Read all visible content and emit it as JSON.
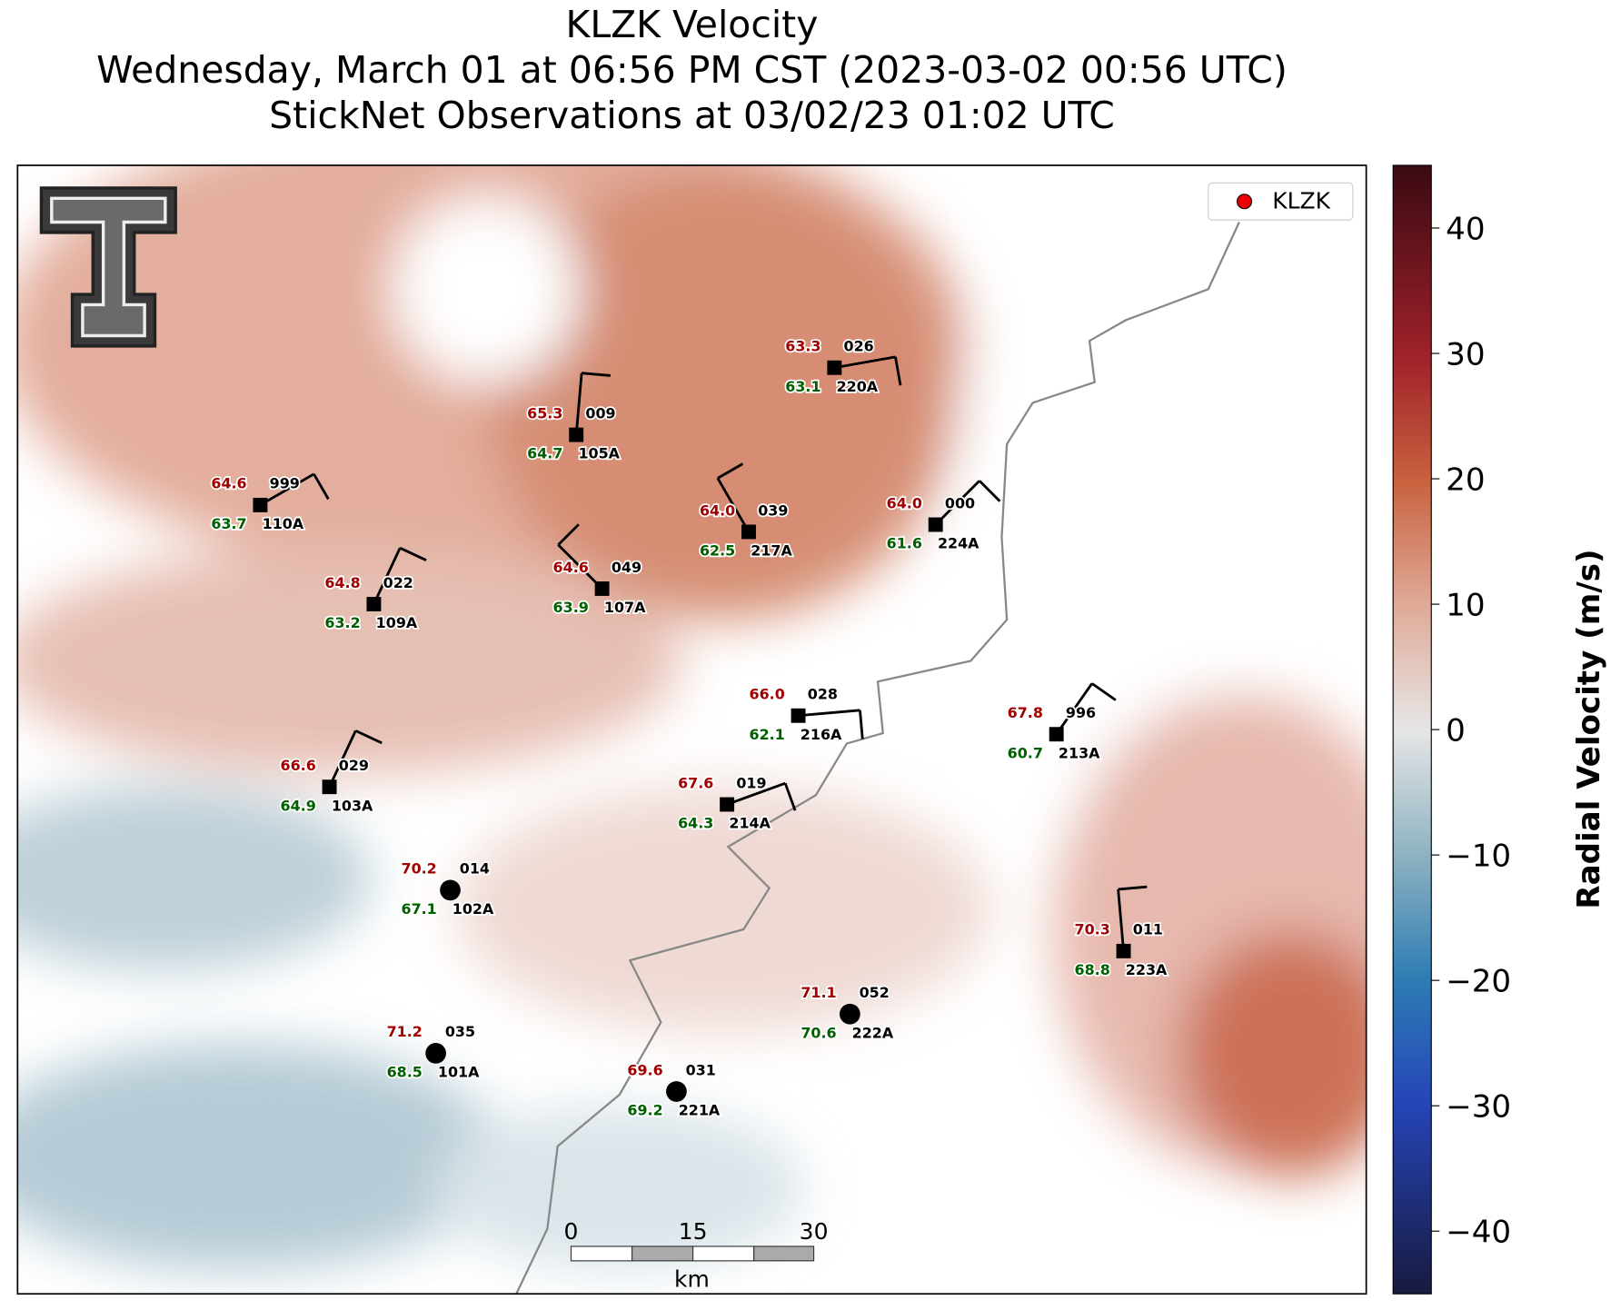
{
  "title": [
    "KLZK Velocity",
    "Wednesday, March 01 at 06:56 PM CST (2023-03-02 00:56 UTC)",
    "StickNet Observations at 03/02/23 01:02 UTC"
  ],
  "legend": {
    "label": "KLZK"
  },
  "colorbar": {
    "label": "Radial Velocity (m/s)",
    "lim": [
      -45,
      45
    ],
    "ticks": [
      {
        "value": -40,
        "label": "−40"
      },
      {
        "value": -30,
        "label": "−30"
      },
      {
        "value": -20,
        "label": "−20"
      },
      {
        "value": -10,
        "label": "−10"
      },
      0,
      10,
      20,
      30,
      40
    ]
  },
  "scale_bar": {
    "ticks": [
      "0",
      "15",
      "30"
    ],
    "unit": "km"
  },
  "stations": [
    {
      "temp": "63.3",
      "dew": "63.1",
      "id": "026",
      "probe": "220A"
    },
    {
      "temp": "65.3",
      "dew": "64.7",
      "id": "009",
      "probe": "105A"
    },
    {
      "temp": "64.6",
      "dew": "63.7",
      "id": "999",
      "probe": "110A"
    },
    {
      "temp": "64.0",
      "dew": "62.5",
      "id": "039",
      "probe": "217A"
    },
    {
      "temp": "64.0",
      "dew": "61.6",
      "id": "000",
      "probe": "224A"
    },
    {
      "temp": "64.8",
      "dew": "63.2",
      "id": "022",
      "probe": "109A"
    },
    {
      "temp": "64.6",
      "dew": "63.9",
      "id": "049",
      "probe": "107A"
    },
    {
      "temp": "66.0",
      "dew": "62.1",
      "id": "028",
      "probe": "216A"
    },
    {
      "temp": "67.8",
      "dew": "60.7",
      "id": "996",
      "probe": "213A"
    },
    {
      "temp": "66.6",
      "dew": "64.9",
      "id": "029",
      "probe": "103A"
    },
    {
      "temp": "67.6",
      "dew": "64.3",
      "id": "019",
      "probe": "214A"
    },
    {
      "temp": "70.2",
      "dew": "67.1",
      "id": "014",
      "probe": "102A"
    },
    {
      "temp": "70.3",
      "dew": "68.8",
      "id": "011",
      "probe": "223A"
    },
    {
      "temp": "71.1",
      "dew": "70.6",
      "id": "052",
      "probe": "222A"
    },
    {
      "temp": "71.2",
      "dew": "68.5",
      "id": "035",
      "probe": "101A"
    },
    {
      "temp": "69.6",
      "dew": "69.2",
      "id": "031",
      "probe": "221A"
    }
  ]
}
